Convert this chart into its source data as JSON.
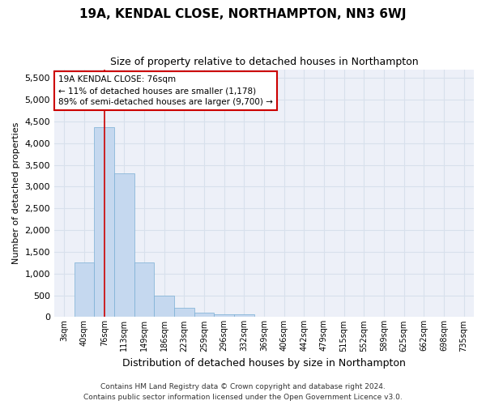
{
  "title": "19A, KENDAL CLOSE, NORTHAMPTON, NN3 6WJ",
  "subtitle": "Size of property relative to detached houses in Northampton",
  "xlabel": "Distribution of detached houses by size in Northampton",
  "ylabel": "Number of detached properties",
  "footer_line1": "Contains HM Land Registry data © Crown copyright and database right 2024.",
  "footer_line2": "Contains public sector information licensed under the Open Government Licence v3.0.",
  "categories": [
    "3sqm",
    "40sqm",
    "76sqm",
    "113sqm",
    "149sqm",
    "186sqm",
    "223sqm",
    "259sqm",
    "296sqm",
    "332sqm",
    "369sqm",
    "406sqm",
    "442sqm",
    "479sqm",
    "515sqm",
    "552sqm",
    "589sqm",
    "625sqm",
    "662sqm",
    "698sqm",
    "735sqm"
  ],
  "bar_values": [
    0,
    1260,
    4360,
    3310,
    1260,
    490,
    215,
    95,
    70,
    55,
    0,
    0,
    0,
    0,
    0,
    0,
    0,
    0,
    0,
    0,
    0
  ],
  "bar_color": "#c5d8ef",
  "bar_edge_color": "#7aafd4",
  "vline_index": 2,
  "ylim": [
    0,
    5700
  ],
  "yticks": [
    0,
    500,
    1000,
    1500,
    2000,
    2500,
    3000,
    3500,
    4000,
    4500,
    5000,
    5500
  ],
  "annotation_title": "19A KENDAL CLOSE: 76sqm",
  "annotation_line1": "← 11% of detached houses are smaller (1,178)",
  "annotation_line2": "89% of semi-detached houses are larger (9,700) →",
  "vline_color": "#cc0000",
  "annotation_box_edge_color": "#cc0000",
  "grid_color": "#d8e0ec",
  "background_color": "#edf0f8",
  "title_fontsize": 11,
  "subtitle_fontsize": 9,
  "ylabel_fontsize": 8,
  "xlabel_fontsize": 9,
  "footer_fontsize": 6.5
}
